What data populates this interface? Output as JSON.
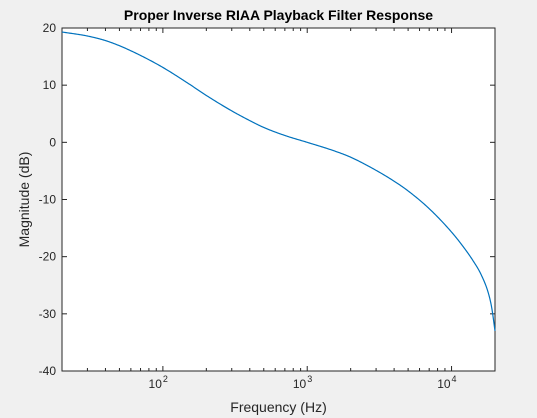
{
  "chart_data": {
    "type": "line",
    "title": "Proper Inverse RIAA Playback Filter Response",
    "xlabel": "Frequency (Hz)",
    "ylabel": "Magnitude (dB)",
    "xscale": "log",
    "xlim": [
      20,
      20000
    ],
    "ylim": [
      -40,
      20
    ],
    "grid": false,
    "yticks": [
      -40,
      -30,
      -20,
      -10,
      0,
      10,
      20
    ],
    "yticklabels": [
      "-40",
      "-30",
      "-20",
      "-10",
      "0",
      "10",
      "20"
    ],
    "xticks": [
      100,
      1000,
      10000
    ],
    "xticklabels": [
      {
        "base": "10",
        "exp": "2"
      },
      {
        "base": "10",
        "exp": "3"
      },
      {
        "base": "10",
        "exp": "4"
      }
    ],
    "series": [
      {
        "color": "#0072bd",
        "x": [
          20,
          30,
          40,
          50,
          70,
          100,
          150,
          200,
          300,
          400,
          500,
          700,
          1000,
          1500,
          2000,
          3000,
          4000,
          5000,
          7000,
          10000,
          12000,
          14000,
          16000,
          18000,
          19000,
          20000
        ],
        "y": [
          19.3,
          18.6,
          17.8,
          16.9,
          15.2,
          13.1,
          10.3,
          8.2,
          5.5,
          3.8,
          2.6,
          1.2,
          0.0,
          -1.4,
          -2.6,
          -4.9,
          -6.8,
          -8.5,
          -11.6,
          -15.7,
          -18.2,
          -20.6,
          -23.1,
          -26.4,
          -29.0,
          -33.0
        ]
      }
    ]
  }
}
